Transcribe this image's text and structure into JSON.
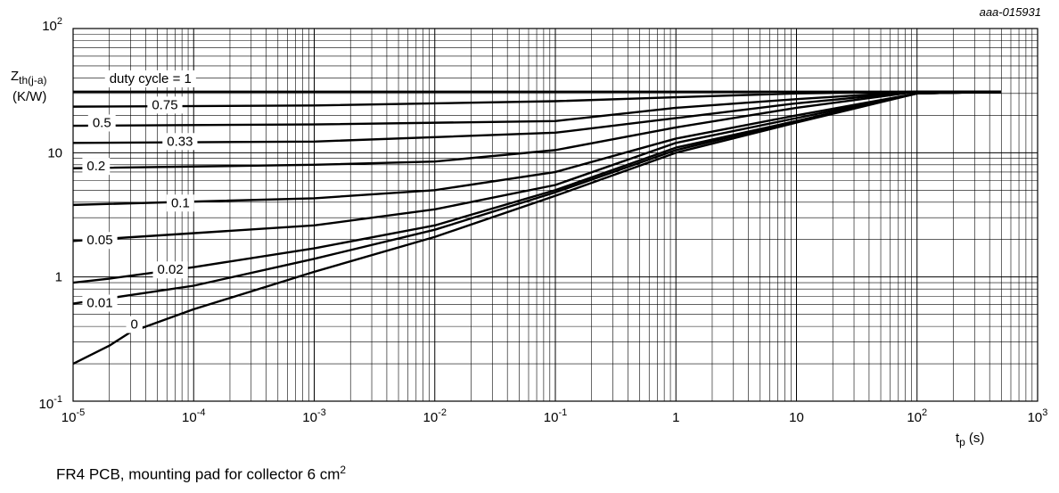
{
  "figure_code": "aaa-015931",
  "caption": {
    "text": "FR4 PCB, mounting pad for collector 6 cm",
    "superscript": "2"
  },
  "chart_data": {
    "type": "line",
    "title": "",
    "xlabel": {
      "base": "t",
      "sub": "p",
      "unit": "(s)"
    },
    "ylabel": {
      "base": "Z",
      "sub": "th(j-a)",
      "unit": "(K/W)"
    },
    "xscale": "log",
    "yscale": "log",
    "xlim": [
      1e-05,
      1000
    ],
    "ylim": [
      0.1,
      100
    ],
    "grid": true,
    "x_ticks": [
      {
        "value": 1e-05,
        "base": "10",
        "exp": "-5"
      },
      {
        "value": 0.0001,
        "base": "10",
        "exp": "-4"
      },
      {
        "value": 0.001,
        "base": "10",
        "exp": "-3"
      },
      {
        "value": 0.01,
        "base": "10",
        "exp": "-2"
      },
      {
        "value": 0.1,
        "base": "10",
        "exp": "-1"
      },
      {
        "value": 1,
        "base": "1",
        "exp": ""
      },
      {
        "value": 10,
        "base": "10",
        "exp": ""
      },
      {
        "value": 100,
        "base": "10",
        "exp": "2"
      },
      {
        "value": 1000,
        "base": "10",
        "exp": "3"
      }
    ],
    "y_ticks": [
      {
        "value": 0.1,
        "base": "10",
        "exp": "-1"
      },
      {
        "value": 1,
        "base": "1",
        "exp": ""
      },
      {
        "value": 10,
        "base": "10",
        "exp": ""
      },
      {
        "value": 100,
        "base": "10",
        "exp": "2"
      }
    ],
    "series": [
      {
        "name": "duty cycle = 1",
        "label_at": [
          2e-05,
          39
        ],
        "points": [
          [
            1e-05,
            31
          ],
          [
            500,
            31
          ]
        ]
      },
      {
        "name": "0.75",
        "label_at": [
          4.5e-05,
          24
        ],
        "points": [
          [
            1e-05,
            23.5
          ],
          [
            0.001,
            24
          ],
          [
            0.1,
            26
          ],
          [
            1,
            28
          ],
          [
            10,
            30
          ],
          [
            100,
            31
          ],
          [
            500,
            31
          ]
        ]
      },
      {
        "name": "0.5",
        "label_at": [
          1.45e-05,
          17.2
        ],
        "points": [
          [
            1e-05,
            16.5
          ],
          [
            0.001,
            16.9
          ],
          [
            0.1,
            18
          ],
          [
            1,
            23
          ],
          [
            10,
            27
          ],
          [
            100,
            31
          ],
          [
            500,
            31
          ]
        ]
      },
      {
        "name": "0.33",
        "label_at": [
          6e-05,
          12.2
        ],
        "points": [
          [
            1e-05,
            12
          ],
          [
            0.001,
            12.3
          ],
          [
            0.1,
            14.5
          ],
          [
            1,
            19
          ],
          [
            10,
            25
          ],
          [
            100,
            31
          ],
          [
            500,
            31
          ]
        ]
      },
      {
        "name": "0.2",
        "label_at": [
          1.3e-05,
          7.7
        ],
        "points": [
          [
            1e-05,
            7.5
          ],
          [
            0.001,
            8
          ],
          [
            0.01,
            8.5
          ],
          [
            0.1,
            10.5
          ],
          [
            1,
            16
          ],
          [
            10,
            23
          ],
          [
            100,
            31
          ],
          [
            500,
            31
          ]
        ]
      },
      {
        "name": "0.1",
        "label_at": [
          6.5e-05,
          3.9
        ],
        "points": [
          [
            1e-05,
            3.8
          ],
          [
            0.001,
            4.3
          ],
          [
            0.01,
            5
          ],
          [
            0.1,
            7
          ],
          [
            1,
            13
          ],
          [
            10,
            20
          ],
          [
            100,
            30
          ],
          [
            500,
            31
          ]
        ]
      },
      {
        "name": "0.05",
        "label_at": [
          1.3e-05,
          1.95
        ],
        "points": [
          [
            1e-05,
            1.95
          ],
          [
            0.001,
            2.6
          ],
          [
            0.01,
            3.5
          ],
          [
            0.1,
            5.5
          ],
          [
            1,
            12
          ],
          [
            10,
            19
          ],
          [
            100,
            30
          ],
          [
            500,
            31
          ]
        ]
      },
      {
        "name": "0.02",
        "label_at": [
          5e-05,
          1.13
        ],
        "points": [
          [
            1e-05,
            0.9
          ],
          [
            2e-05,
            0.97
          ],
          [
            0.0001,
            1.2
          ],
          [
            0.001,
            1.7
          ],
          [
            0.01,
            2.6
          ],
          [
            0.1,
            5
          ],
          [
            1,
            11
          ],
          [
            10,
            18
          ],
          [
            100,
            30
          ],
          [
            500,
            31
          ]
        ]
      },
      {
        "name": "0.01",
        "label_at": [
          1.3e-05,
          0.61
        ],
        "points": [
          [
            1e-05,
            0.61
          ],
          [
            0.0001,
            0.85
          ],
          [
            0.001,
            1.4
          ],
          [
            0.01,
            2.4
          ],
          [
            0.1,
            4.8
          ],
          [
            1,
            10.5
          ],
          [
            10,
            18
          ],
          [
            100,
            30
          ],
          [
            500,
            31
          ]
        ]
      },
      {
        "name": "0",
        "label_at": [
          3e-05,
          0.41
        ],
        "points": [
          [
            1e-05,
            0.2
          ],
          [
            2e-05,
            0.28
          ],
          [
            3e-05,
            0.36
          ],
          [
            0.0001,
            0.55
          ],
          [
            0.001,
            1.1
          ],
          [
            0.01,
            2.1
          ],
          [
            0.1,
            4.5
          ],
          [
            1,
            10
          ],
          [
            10,
            17.5
          ],
          [
            100,
            30
          ],
          [
            500,
            31
          ]
        ]
      }
    ]
  }
}
